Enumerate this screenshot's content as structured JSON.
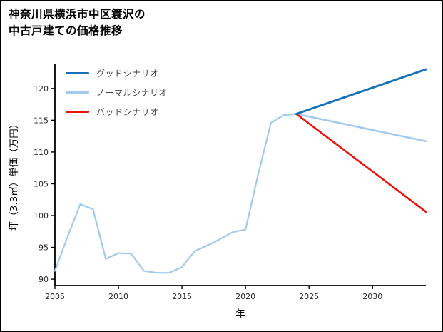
{
  "header": {
    "title_line1": "神奈川県横浜市中区簑沢の",
    "title_line2": "中古戸建ての価格推移"
  },
  "chart_data": {
    "type": "line",
    "title": "神奈川県横浜市中区簑沢の中古戸建ての価格推移",
    "xlabel": "年",
    "ylabel": "坪（3.3㎡）単価（万円）",
    "xlim": [
      2005,
      2034.2
    ],
    "ylim": [
      89,
      123.8
    ],
    "xticks": [
      2005,
      2010,
      2015,
      2020,
      2025,
      2030
    ],
    "yticks": [
      90,
      95,
      100,
      105,
      110,
      115,
      120
    ],
    "grid": false,
    "legend_position": "upper-left",
    "axis_color": "#000000",
    "tick_color": "#262626",
    "legend": [
      {
        "label": "グッドシナリオ",
        "color": "#1572b8"
      },
      {
        "label": "ノーマルシナリオ",
        "color": "#a1cbec"
      },
      {
        "label": "バッドシナリオ",
        "color": "#e8140e"
      }
    ],
    "series": [
      {
        "id": "history",
        "color": "#a1cbec",
        "width": 2.2,
        "x": [
          2005,
          2006,
          2007,
          2008,
          2009,
          2010,
          2011,
          2012,
          2013,
          2014,
          2015,
          2016,
          2017,
          2018,
          2019,
          2020,
          2021,
          2022,
          2023,
          2024
        ],
        "y": [
          91.3,
          96.7,
          101.8,
          101.0,
          93.2,
          94.1,
          94.0,
          91.3,
          91.0,
          91.0,
          91.9,
          94.4,
          95.3,
          96.3,
          97.4,
          97.8,
          106.5,
          114.6,
          115.8,
          116.0
        ]
      },
      {
        "id": "normal-scenario",
        "color": "#a1cbec",
        "width": 2.6,
        "x": [
          2024,
          2034.2
        ],
        "y": [
          116.0,
          111.7
        ]
      },
      {
        "id": "bad-scenario",
        "color": "#e8140e",
        "width": 2.6,
        "x": [
          2024,
          2034.2
        ],
        "y": [
          116.0,
          100.6
        ]
      },
      {
        "id": "good-scenario",
        "color": "#1572b8",
        "width": 3,
        "x": [
          2024,
          2034.2
        ],
        "y": [
          116.0,
          123.0
        ]
      }
    ]
  }
}
